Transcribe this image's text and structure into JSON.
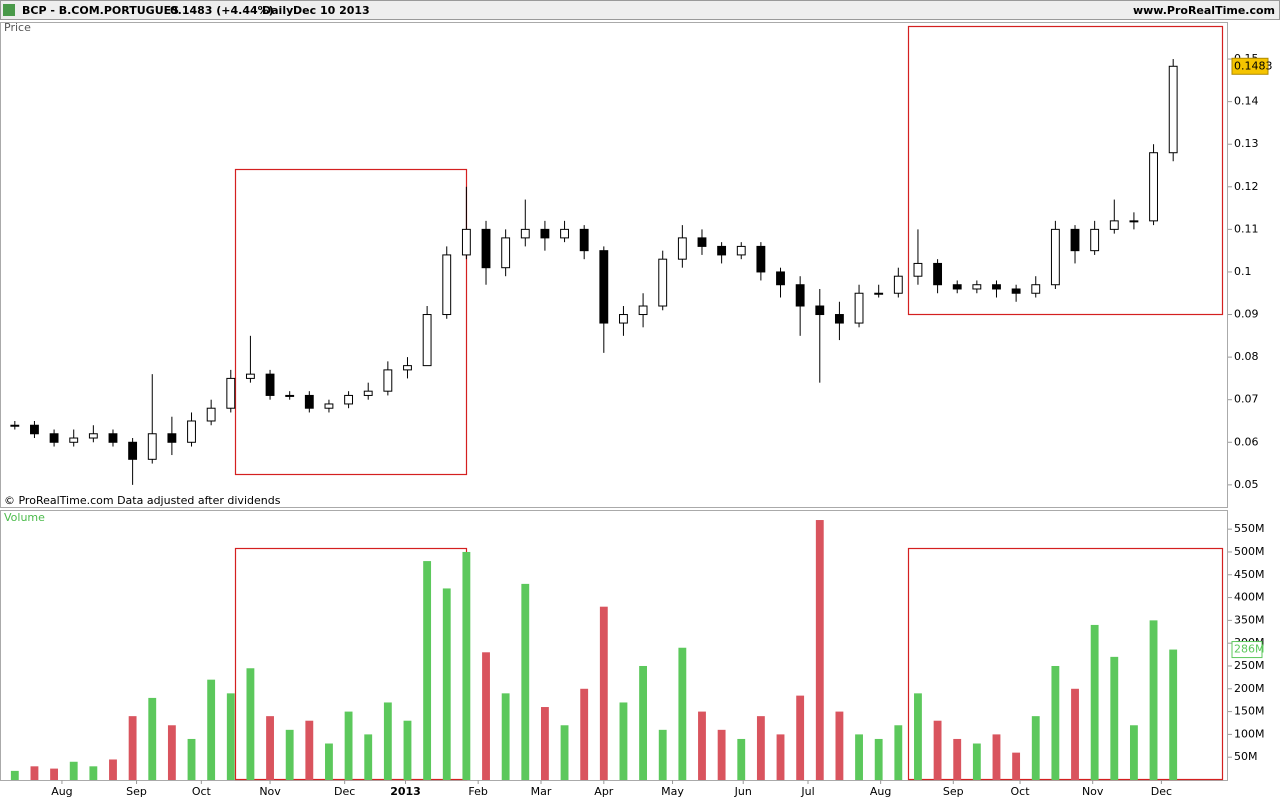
{
  "chart_data": [
    {
      "type": "candlestick",
      "title": "BCP - B.COM.PORTUGUES",
      "change": "0.1483 (+4.44%)",
      "period": "Daily",
      "date": "Dec 10 2013",
      "source": "www.ProRealTime.com",
      "panel_label": "Price",
      "note": "© ProRealTime.com  Data adjusted after dividends",
      "xlim": [
        -0.5,
        59.5
      ],
      "xticks": [
        {
          "value": 2.4,
          "label": "Aug"
        },
        {
          "value": 6.2,
          "label": "Sep"
        },
        {
          "value": 9.5,
          "label": "Oct"
        },
        {
          "value": 13.0,
          "label": "Nov"
        },
        {
          "value": 16.8,
          "label": "Dec"
        },
        {
          "value": 19.9,
          "label": "2013"
        },
        {
          "value": 23.6,
          "label": "Feb"
        },
        {
          "value": 26.8,
          "label": "Mar"
        },
        {
          "value": 30.0,
          "label": "Apr"
        },
        {
          "value": 33.5,
          "label": "May"
        },
        {
          "value": 37.1,
          "label": "Jun"
        },
        {
          "value": 40.4,
          "label": "Jul"
        },
        {
          "value": 44.1,
          "label": "Aug"
        },
        {
          "value": 47.8,
          "label": "Sep"
        },
        {
          "value": 51.2,
          "label": "Oct"
        },
        {
          "value": 54.9,
          "label": "Nov"
        },
        {
          "value": 58.4,
          "label": "Dec"
        }
      ],
      "ylim": [
        0.0448,
        0.1587
      ],
      "yticks": [
        0.05,
        0.06,
        0.07,
        0.08,
        0.09,
        0.1,
        0.11,
        0.12,
        0.13,
        0.14,
        0.15
      ],
      "color": "#000000",
      "last_color": "#f5c400",
      "open": [
        0.064,
        0.064,
        0.062,
        0.06,
        0.061,
        0.062,
        0.06,
        0.056,
        0.062,
        0.06,
        0.065,
        0.068,
        0.075,
        0.076,
        0.071,
        0.071,
        0.068,
        0.069,
        0.071,
        0.072,
        0.077,
        0.078,
        0.09,
        0.104,
        0.11,
        0.101,
        0.108,
        0.11,
        0.108,
        0.11,
        0.105,
        0.088,
        0.09,
        0.092,
        0.103,
        0.108,
        0.106,
        0.104,
        0.106,
        0.1,
        0.097,
        0.092,
        0.09,
        0.088,
        0.095,
        0.095,
        0.099,
        0.102,
        0.097,
        0.096,
        0.097,
        0.096,
        0.095,
        0.097,
        0.11,
        0.105,
        0.11,
        0.112,
        0.112,
        0.128
      ],
      "high": [
        0.065,
        0.065,
        0.063,
        0.063,
        0.064,
        0.063,
        0.061,
        0.076,
        0.066,
        0.067,
        0.07,
        0.077,
        0.085,
        0.077,
        0.072,
        0.072,
        0.07,
        0.072,
        0.074,
        0.079,
        0.08,
        0.092,
        0.106,
        0.12,
        0.112,
        0.11,
        0.117,
        0.112,
        0.112,
        0.111,
        0.106,
        0.092,
        0.095,
        0.105,
        0.111,
        0.11,
        0.107,
        0.107,
        0.107,
        0.101,
        0.099,
        0.096,
        0.093,
        0.097,
        0.097,
        0.101,
        0.11,
        0.103,
        0.098,
        0.098,
        0.098,
        0.097,
        0.099,
        0.112,
        0.111,
        0.112,
        0.117,
        0.114,
        0.13,
        0.15
      ],
      "low": [
        0.063,
        0.061,
        0.059,
        0.059,
        0.06,
        0.059,
        0.05,
        0.055,
        0.057,
        0.059,
        0.064,
        0.067,
        0.074,
        0.07,
        0.07,
        0.067,
        0.067,
        0.068,
        0.07,
        0.071,
        0.075,
        0.078,
        0.089,
        0.103,
        0.097,
        0.099,
        0.106,
        0.105,
        0.107,
        0.103,
        0.081,
        0.085,
        0.087,
        0.091,
        0.101,
        0.104,
        0.102,
        0.103,
        0.098,
        0.094,
        0.085,
        0.074,
        0.084,
        0.087,
        0.094,
        0.094,
        0.097,
        0.095,
        0.095,
        0.095,
        0.094,
        0.093,
        0.094,
        0.096,
        0.102,
        0.104,
        0.109,
        0.11,
        0.111,
        0.126
      ],
      "close": [
        0.064,
        0.062,
        0.06,
        0.061,
        0.062,
        0.06,
        0.056,
        0.062,
        0.06,
        0.065,
        0.068,
        0.075,
        0.076,
        0.071,
        0.071,
        0.068,
        0.069,
        0.071,
        0.072,
        0.077,
        0.078,
        0.09,
        0.104,
        0.11,
        0.101,
        0.108,
        0.11,
        0.108,
        0.11,
        0.105,
        0.088,
        0.09,
        0.092,
        0.103,
        0.108,
        0.106,
        0.104,
        0.106,
        0.1,
        0.097,
        0.092,
        0.09,
        0.088,
        0.095,
        0.095,
        0.099,
        0.102,
        0.097,
        0.096,
        0.097,
        0.096,
        0.095,
        0.097,
        0.11,
        0.105,
        0.11,
        0.112,
        0.112,
        0.128,
        0.1483
      ]
    },
    {
      "type": "bar",
      "panel_label": "Volume",
      "ylim": [
        0,
        592
      ],
      "yticks": [
        {
          "value": 50,
          "label": "50M"
        },
        {
          "value": 100,
          "label": "100M"
        },
        {
          "value": 150,
          "label": "150M"
        },
        {
          "value": 200,
          "label": "200M"
        },
        {
          "value": 250,
          "label": "250M"
        },
        {
          "value": 300,
          "label": "300M"
        },
        {
          "value": 350,
          "label": "350M"
        },
        {
          "value": 400,
          "label": "400M"
        },
        {
          "value": 450,
          "label": "450M"
        },
        {
          "value": 500,
          "label": "500M"
        },
        {
          "value": 550,
          "label": "550M"
        }
      ],
      "up_color": "#5cc85c",
      "down_color": "#d9545e",
      "values": [
        20,
        30,
        25,
        40,
        30,
        45,
        140,
        180,
        120,
        90,
        220,
        190,
        245,
        140,
        110,
        130,
        80,
        150,
        100,
        170,
        130,
        480,
        420,
        500,
        280,
        190,
        430,
        160,
        120,
        200,
        380,
        170,
        250,
        110,
        290,
        150,
        110,
        90,
        140,
        100,
        185,
        570,
        150,
        100,
        90,
        120,
        190,
        130,
        90,
        80,
        100,
        60,
        140,
        250,
        200,
        340,
        270,
        120,
        350,
        286
      ],
      "value_labels": [
        null,
        null,
        null,
        null,
        null,
        null,
        null,
        null,
        null,
        null,
        null,
        null,
        null,
        null,
        null,
        null,
        null,
        null,
        null,
        null,
        null,
        null,
        null,
        null,
        null,
        null,
        null,
        null,
        null,
        null,
        null,
        null,
        null,
        null,
        null,
        null,
        null,
        null,
        null,
        null,
        null,
        null,
        null,
        null,
        null,
        null,
        null,
        null,
        null,
        null,
        null,
        null,
        null,
        null,
        null,
        null,
        null,
        null,
        null,
        "286M"
      ]
    }
  ]
}
